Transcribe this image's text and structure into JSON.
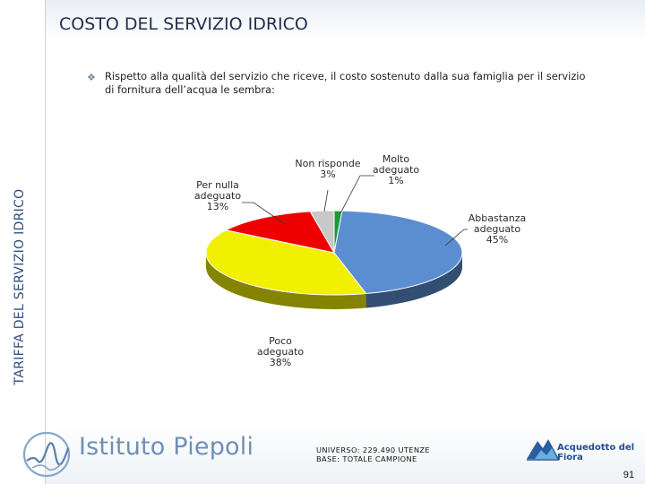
{
  "header": {
    "title": "COSTO DEL SERVIZIO IDRICO"
  },
  "sidebar": {
    "vertical_title": "TARIFFA DEL SERVIZIO IDRICO"
  },
  "question": "Rispetto alla qualità del servizio che riceve, il costo sostenuto dalla sua famiglia per il servizio di fornitura dell’acqua le sembra:",
  "chart_data": {
    "type": "pie",
    "title": "",
    "slices": [
      {
        "name": "Molto adeguato",
        "value": 1,
        "label": "1%",
        "color": "#1a9a3c"
      },
      {
        "name": "Abbastanza adeguato",
        "value": 45,
        "label": "45%",
        "color": "#5b8ed0"
      },
      {
        "name": "Poco adeguato",
        "value": 38,
        "label": "38%",
        "color": "#f0f000"
      },
      {
        "name": "Per nulla adeguato",
        "value": 13,
        "label": "13%",
        "color": "#ee0000"
      },
      {
        "name": "Non risponde",
        "value": 3,
        "label": "3%",
        "color": "#c8c8c8"
      }
    ],
    "slice_lines": [
      [
        "Molto",
        "adeguato"
      ],
      [
        "Abbastanza",
        "adeguato"
      ],
      [
        "Poco",
        "adeguato"
      ],
      [
        "Per nulla",
        "adeguato"
      ],
      [
        "Non risponde"
      ]
    ]
  },
  "footer": {
    "logo_text": "Istituto Piepoli",
    "universe": "UNIVERSO: 229.490 UTENZE",
    "base": "BASE: TOTALE CAMPIONE",
    "partner": "Acquedotto del Fiora",
    "page_number": "91"
  }
}
